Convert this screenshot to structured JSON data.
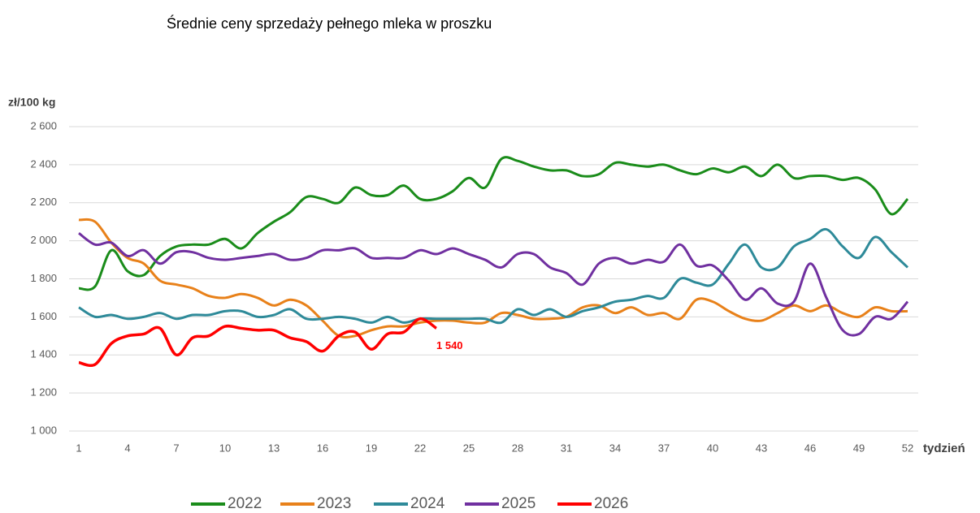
{
  "chart_data": {
    "type": "line",
    "title": "Średnie ceny sprzedaży pełnego mleka w proszku",
    "y_label": "zł/100 kg",
    "x_label": "tydzień",
    "x": [
      1,
      2,
      3,
      4,
      5,
      6,
      7,
      8,
      9,
      10,
      11,
      12,
      13,
      14,
      15,
      16,
      17,
      18,
      19,
      20,
      21,
      22,
      23,
      24,
      25,
      26,
      27,
      28,
      29,
      30,
      31,
      32,
      33,
      34,
      35,
      36,
      37,
      38,
      39,
      40,
      41,
      42,
      43,
      44,
      45,
      46,
      47,
      48,
      49,
      50,
      51,
      52
    ],
    "xlim": [
      1,
      52
    ],
    "xticks": [
      1,
      4,
      7,
      10,
      13,
      16,
      19,
      22,
      25,
      28,
      31,
      34,
      37,
      40,
      43,
      46,
      49,
      52
    ],
    "ylim": [
      1000,
      2600
    ],
    "yticks": [
      {
        "value": 1000,
        "label": "1 000"
      },
      {
        "value": 1200,
        "label": "1 200"
      },
      {
        "value": 1400,
        "label": "1 400"
      },
      {
        "value": 1600,
        "label": "1 600"
      },
      {
        "value": 1800,
        "label": "1 800"
      },
      {
        "value": 2000,
        "label": "2 000"
      },
      {
        "value": 2200,
        "label": "2 200"
      },
      {
        "value": 2400,
        "label": "2 400"
      },
      {
        "value": 2600,
        "label": "2 600"
      }
    ],
    "grid": true,
    "legend": "bottom",
    "series": [
      {
        "name": "2022",
        "color": "#1a8c1a",
        "values": [
          1750,
          1760,
          1950,
          1840,
          1820,
          1920,
          1970,
          1980,
          1980,
          2010,
          1960,
          2040,
          2100,
          2150,
          2230,
          2220,
          2200,
          2280,
          2240,
          2240,
          2290,
          2220,
          2220,
          2260,
          2330,
          2280,
          2430,
          2420,
          2390,
          2370,
          2370,
          2340,
          2350,
          2410,
          2400,
          2390,
          2400,
          2370,
          2350,
          2380,
          2360,
          2390,
          2340,
          2400,
          2330,
          2340,
          2340,
          2320,
          2330,
          2270,
          2140,
          2220
        ]
      },
      {
        "name": "2023",
        "color": "#e8811a",
        "values": [
          2110,
          2100,
          1990,
          1910,
          1880,
          1790,
          1770,
          1750,
          1710,
          1700,
          1720,
          1700,
          1660,
          1690,
          1660,
          1580,
          1500,
          1500,
          1530,
          1550,
          1550,
          1570,
          1580,
          1580,
          1570,
          1570,
          1620,
          1610,
          1590,
          1590,
          1600,
          1650,
          1660,
          1620,
          1650,
          1610,
          1620,
          1590,
          1690,
          1680,
          1630,
          1590,
          1580,
          1620,
          1660,
          1630,
          1660,
          1620,
          1600,
          1650,
          1630,
          1630
        ]
      },
      {
        "name": "2024",
        "color": "#2e8a99",
        "values": [
          1650,
          1600,
          1610,
          1590,
          1600,
          1620,
          1590,
          1610,
          1610,
          1630,
          1630,
          1600,
          1610,
          1640,
          1590,
          1590,
          1600,
          1590,
          1570,
          1600,
          1570,
          1590,
          1590,
          1590,
          1590,
          1590,
          1570,
          1640,
          1610,
          1640,
          1600,
          1630,
          1650,
          1680,
          1690,
          1710,
          1700,
          1800,
          1780,
          1770,
          1880,
          1980,
          1860,
          1860,
          1970,
          2010,
          2060,
          1970,
          1910,
          2020,
          1940,
          1860
        ]
      },
      {
        "name": "2025",
        "color": "#7030a0",
        "values": [
          2040,
          1980,
          1990,
          1920,
          1950,
          1880,
          1940,
          1940,
          1910,
          1900,
          1910,
          1920,
          1930,
          1900,
          1910,
          1950,
          1950,
          1960,
          1910,
          1910,
          1910,
          1950,
          1930,
          1960,
          1930,
          1900,
          1860,
          1930,
          1930,
          1860,
          1830,
          1770,
          1880,
          1910,
          1880,
          1900,
          1890,
          1980,
          1870,
          1870,
          1790,
          1690,
          1750,
          1670,
          1680,
          1880,
          1700,
          1530,
          1510,
          1600,
          1590,
          1680
        ]
      },
      {
        "name": "2026",
        "color": "#ff0000",
        "values": [
          1360,
          1350,
          1460,
          1500,
          1510,
          1540,
          1400,
          1490,
          1500,
          1550,
          1540,
          1530,
          1530,
          1490,
          1470,
          1420,
          1500,
          1520,
          1430,
          1510,
          1520,
          1590,
          1540,
          null,
          null,
          null,
          null,
          null,
          null,
          null,
          null,
          null,
          null,
          null,
          null,
          null,
          null,
          null,
          null,
          null,
          null,
          null,
          null,
          null,
          null,
          null,
          null,
          null,
          null,
          null,
          null,
          null
        ],
        "value_labels": [
          null,
          null,
          null,
          null,
          null,
          null,
          null,
          null,
          null,
          null,
          null,
          null,
          null,
          null,
          null,
          null,
          null,
          null,
          null,
          null,
          null,
          null,
          "1 540",
          null,
          null,
          null,
          null,
          null,
          null,
          null,
          null,
          null,
          null,
          null,
          null,
          null,
          null,
          null,
          null,
          null,
          null,
          null,
          null,
          null,
          null,
          null,
          null,
          null,
          null,
          null,
          null,
          null
        ]
      }
    ]
  }
}
